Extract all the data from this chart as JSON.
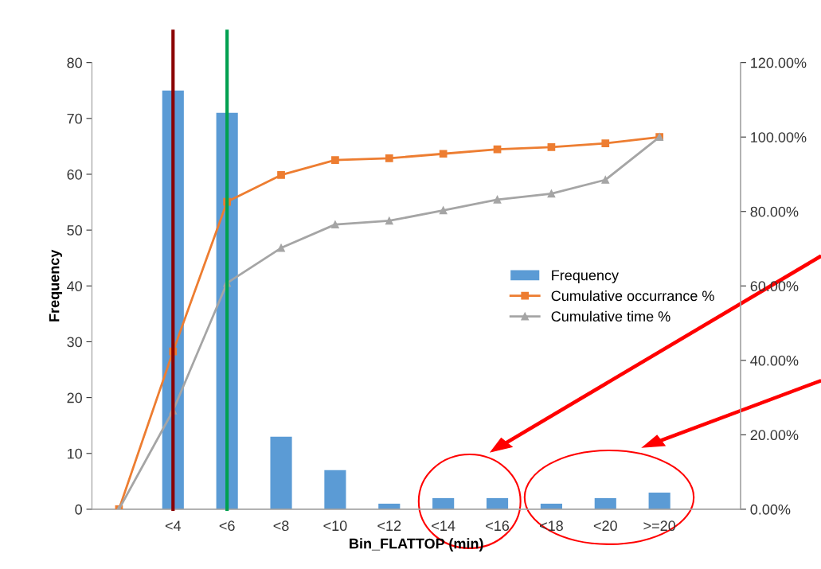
{
  "chart_data": {
    "type": "bar",
    "xlabel": "Bin_FLATTOP (min)",
    "ylabel": "Frequency",
    "categories": [
      null,
      "<4",
      "<6",
      "<8",
      "<10",
      "<12",
      "<14",
      "<16",
      "<18",
      "<20",
      ">=20"
    ],
    "series": [
      {
        "name": "Frequency",
        "color": "#5b9bd5",
        "values": [
          0,
          75,
          71,
          13,
          7,
          1,
          2,
          2,
          1,
          2,
          3
        ]
      },
      {
        "name": "Cumulative occurrance %",
        "type": "line",
        "axis": "y2",
        "marker": "square",
        "color": "#ed7d31",
        "values": [
          0,
          42.4,
          82.6,
          89.8,
          93.8,
          94.3,
          95.5,
          96.7,
          97.3,
          98.3,
          100
        ]
      },
      {
        "name": "Cumulative time %",
        "type": "line",
        "axis": "y2",
        "marker": "triangle",
        "color": "#a5a5a5",
        "values": [
          0,
          26.5,
          60.8,
          70.2,
          76.5,
          77.5,
          80.3,
          83.2,
          84.8,
          88.5,
          100
        ]
      }
    ],
    "ylim": [
      0,
      80
    ],
    "yticks": [
      0,
      10,
      20,
      30,
      40,
      50,
      60,
      70,
      80
    ],
    "y2lim": [
      0,
      120
    ],
    "y2ticks": [
      {
        "value": 0,
        "label": "0.00%"
      },
      {
        "value": 20,
        "label": "20.00%"
      },
      {
        "value": 40,
        "label": "40.00%"
      },
      {
        "value": 60,
        "label": "60.00%"
      },
      {
        "value": 80,
        "label": "80.00%"
      },
      {
        "value": 100,
        "label": "100.00%"
      },
      {
        "value": 120,
        "label": "120.00%"
      }
    ],
    "ref_lines": [
      {
        "axis": "x",
        "value": "<4",
        "color": "#8b0000"
      },
      {
        "axis": "x",
        "value": "<6",
        "color": "#00a050"
      }
    ],
    "legend": "center right",
    "grid": false
  }
}
